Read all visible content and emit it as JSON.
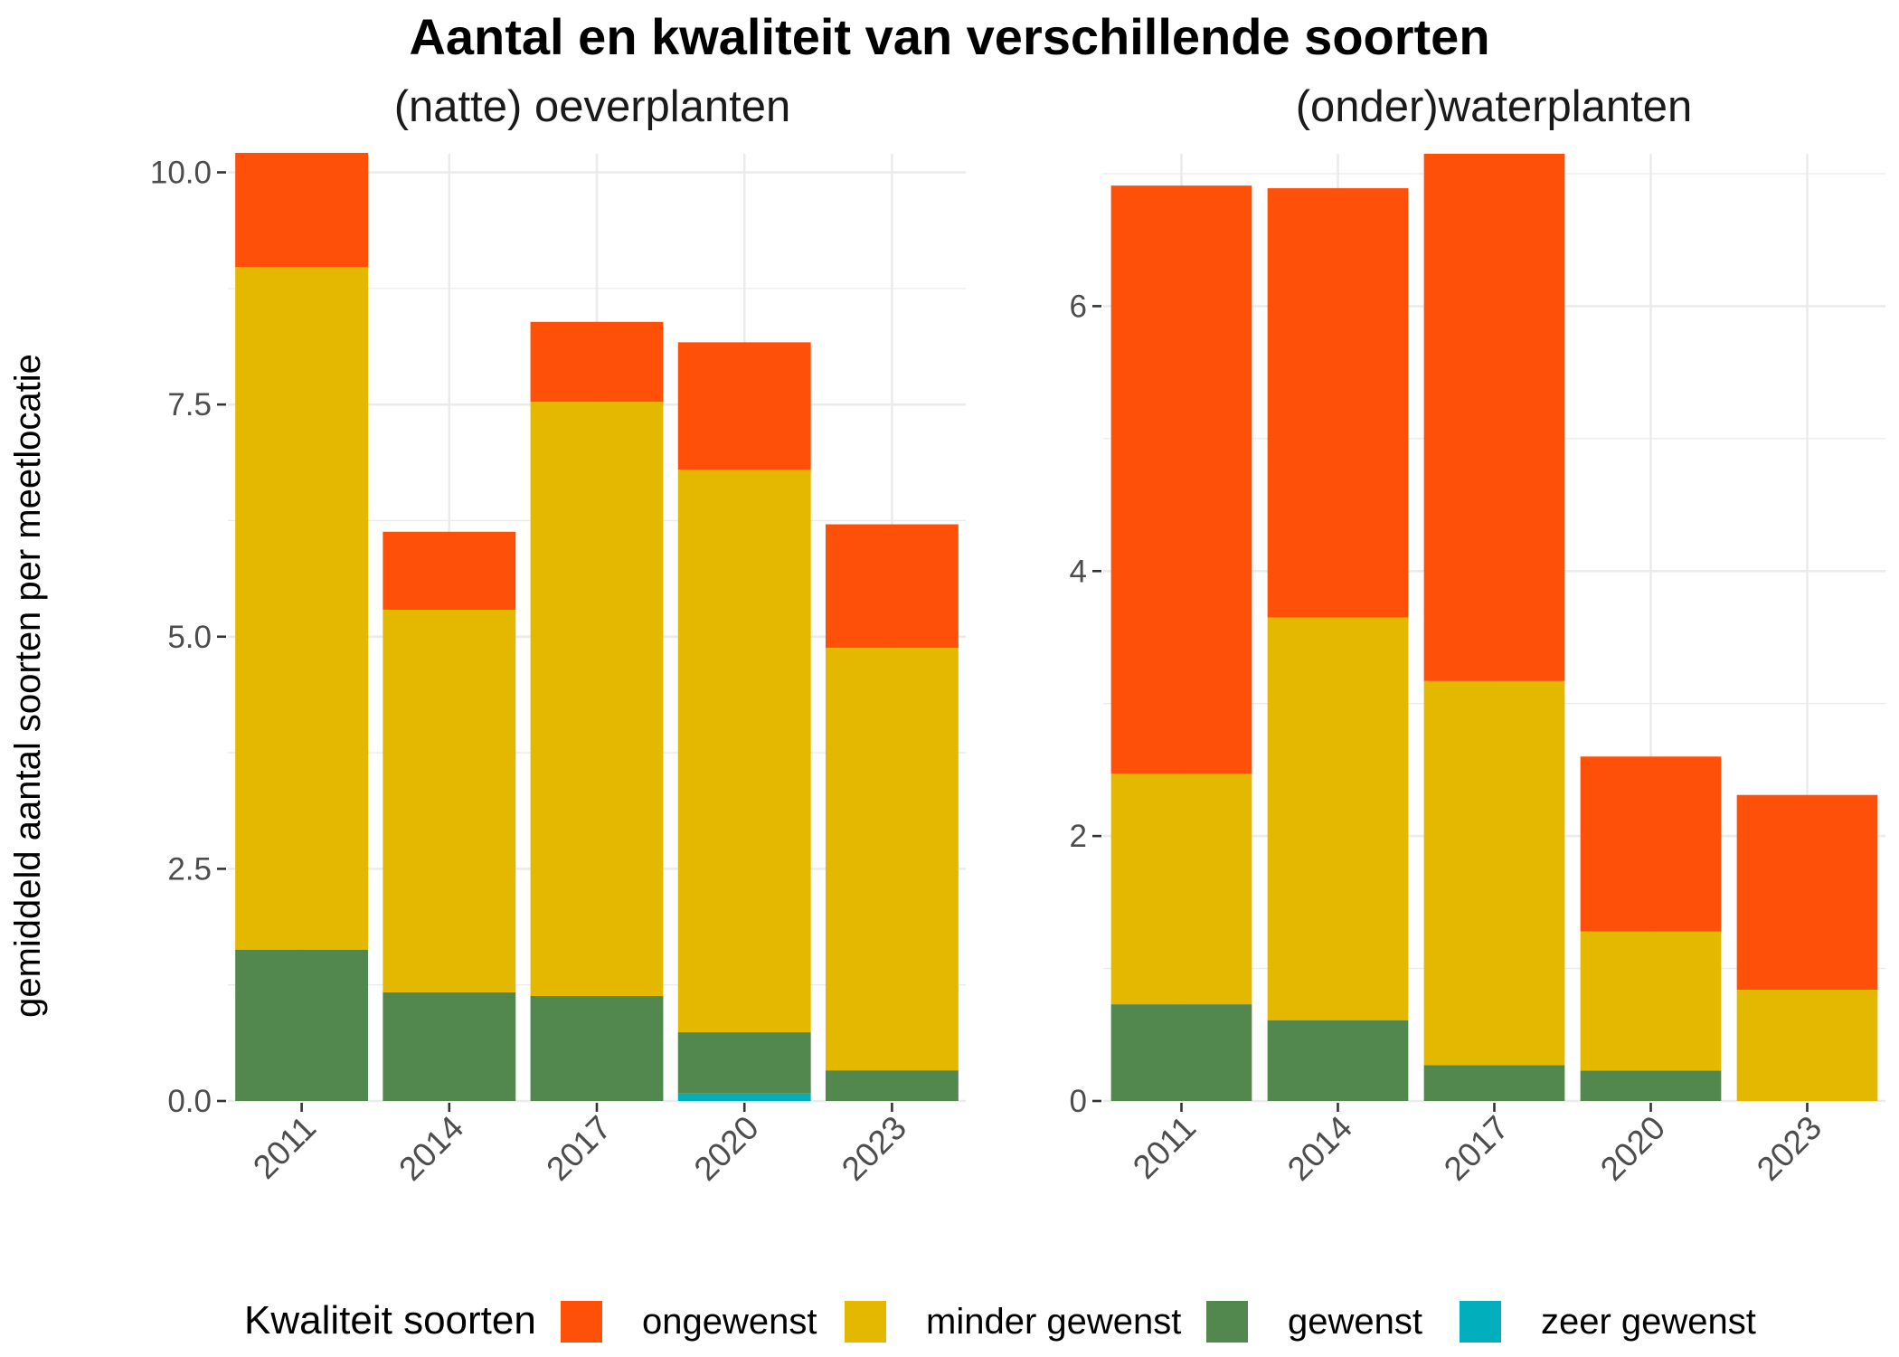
{
  "title": "Aantal en kwaliteit van verschillende soorten",
  "ylabel": "gemiddeld aantal soorten per meetlocatie",
  "legend": {
    "title": "Kwaliteit soorten",
    "items": [
      {
        "label": "ongewenst",
        "color": "#FF5009"
      },
      {
        "label": "minder gewenst",
        "color": "#E5B800"
      },
      {
        "label": "gewenst",
        "color": "#52884E"
      },
      {
        "label": "zeer gewenst",
        "color": "#00AFBB"
      }
    ]
  },
  "chart_data": [
    {
      "type": "bar",
      "stacked": true,
      "title": "(natte) oeverplanten",
      "categories": [
        "2011",
        "2014",
        "2017",
        "2020",
        "2023"
      ],
      "ylim": [
        0,
        10.2
      ],
      "yticks": [
        "0.0",
        "2.5",
        "5.0",
        "7.5",
        "10.0"
      ],
      "ytick_values": [
        0,
        2.5,
        5,
        7.5,
        10
      ],
      "grid": true,
      "series": [
        {
          "name": "zeer gewenst",
          "values": [
            0,
            0,
            0,
            0.08,
            0
          ]
        },
        {
          "name": "gewenst",
          "values": [
            1.63,
            1.17,
            1.13,
            0.66,
            0.33
          ]
        },
        {
          "name": "minder gewenst",
          "values": [
            7.35,
            4.12,
            6.4,
            6.06,
            4.55
          ]
        },
        {
          "name": "ongewenst",
          "values": [
            1.23,
            0.84,
            0.86,
            1.37,
            1.33
          ]
        }
      ]
    },
    {
      "type": "bar",
      "stacked": true,
      "title": "(onder)waterplanten",
      "categories": [
        "2011",
        "2014",
        "2017",
        "2020",
        "2023"
      ],
      "ylim": [
        0,
        7.15
      ],
      "yticks": [
        "0",
        "2",
        "4",
        "6"
      ],
      "ytick_values": [
        0,
        2,
        4,
        6
      ],
      "grid": true,
      "series": [
        {
          "name": "zeer gewenst",
          "values": [
            0,
            0,
            0,
            0,
            0
          ]
        },
        {
          "name": "gewenst",
          "values": [
            0.73,
            0.61,
            0.27,
            0.23,
            0
          ]
        },
        {
          "name": "minder gewenst",
          "values": [
            1.74,
            3.04,
            2.9,
            1.05,
            0.84
          ]
        },
        {
          "name": "ongewenst",
          "values": [
            4.44,
            3.24,
            3.98,
            1.32,
            1.47
          ]
        }
      ]
    }
  ]
}
